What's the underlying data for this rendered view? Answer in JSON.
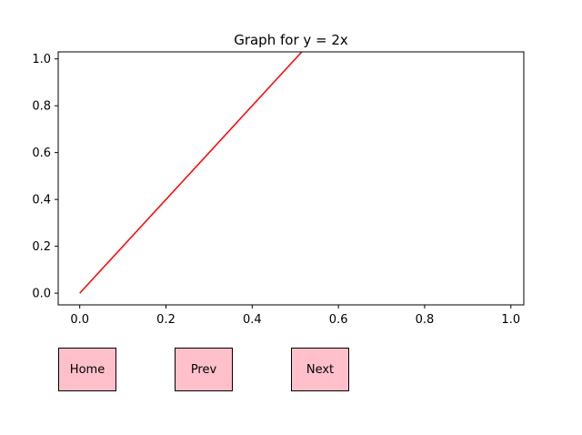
{
  "chart_data": {
    "type": "line",
    "title": "Graph for y = 2x",
    "xlabel": "",
    "ylabel": "",
    "xlim": [
      -0.05,
      1.03
    ],
    "ylim": [
      -0.05,
      1.03
    ],
    "xticks": [
      "0.0",
      "0.2",
      "0.4",
      "0.6",
      "0.8",
      "1.0"
    ],
    "yticks": [
      "0.0",
      "0.2",
      "0.4",
      "0.6",
      "0.8",
      "1.0"
    ],
    "grid": false,
    "series": [
      {
        "color": "#ff0000",
        "x": [
          0.0,
          0.515
        ],
        "y": [
          0.0,
          1.03
        ]
      }
    ]
  },
  "buttons": {
    "home_label": "Home",
    "prev_label": "Prev",
    "next_label": "Next",
    "color": "#ffc0cb"
  }
}
